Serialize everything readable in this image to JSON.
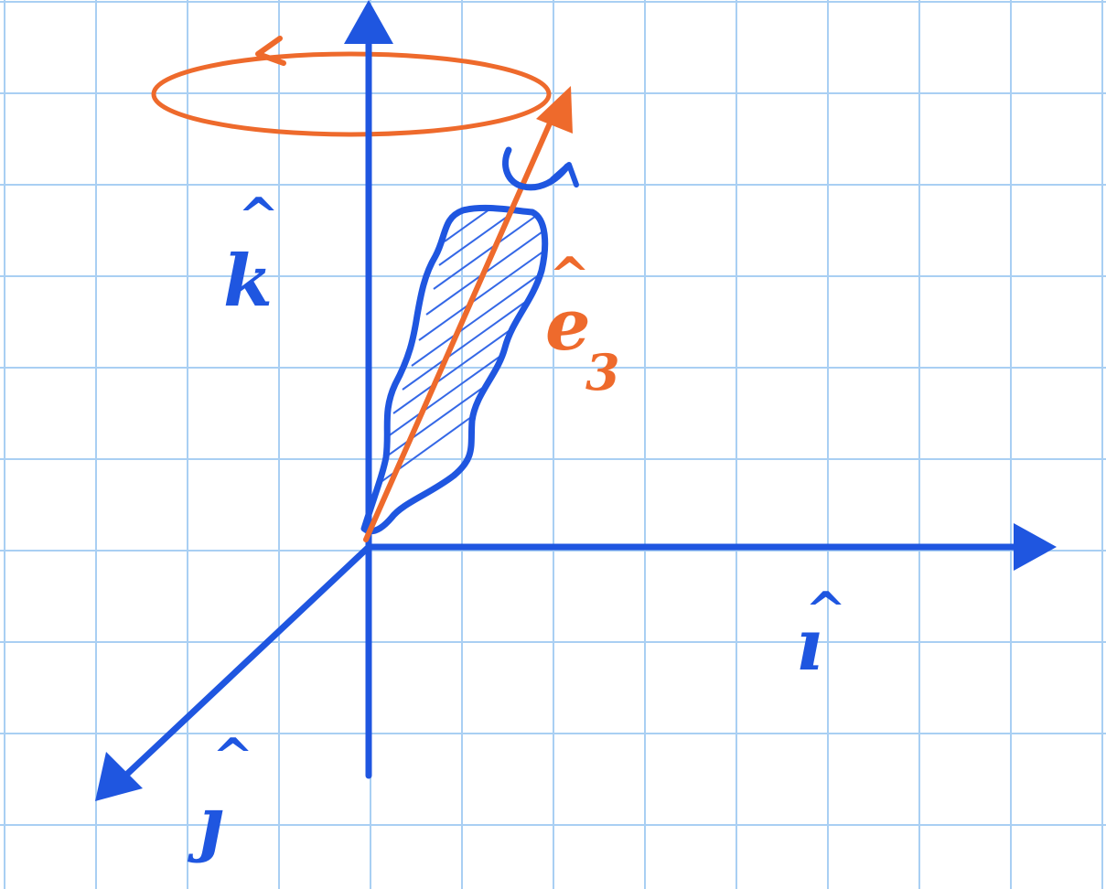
{
  "labels": {
    "k_hat": "k",
    "i_hat": "ı",
    "j_hat": "ȷ",
    "e_letter": "e",
    "e_subscript": "3",
    "hat_mark": "^"
  },
  "colors": {
    "background": "#ffffff",
    "grid": "#a9cff3",
    "axis_blue": "#1f56e0",
    "accent_orange": "#ee6a2c",
    "hatch_blue": "#3568e6"
  },
  "icons": {
    "k_axis_arrow": "arrow-up-icon",
    "i_axis_arrow": "arrow-right-icon",
    "j_axis_arrow": "arrow-down-left-icon",
    "e3_axis_arrow": "arrow-up-right-icon",
    "precession_loop": "rotation-ellipse-icon",
    "spin_arrow": "curved-rotation-arrow-icon"
  }
}
